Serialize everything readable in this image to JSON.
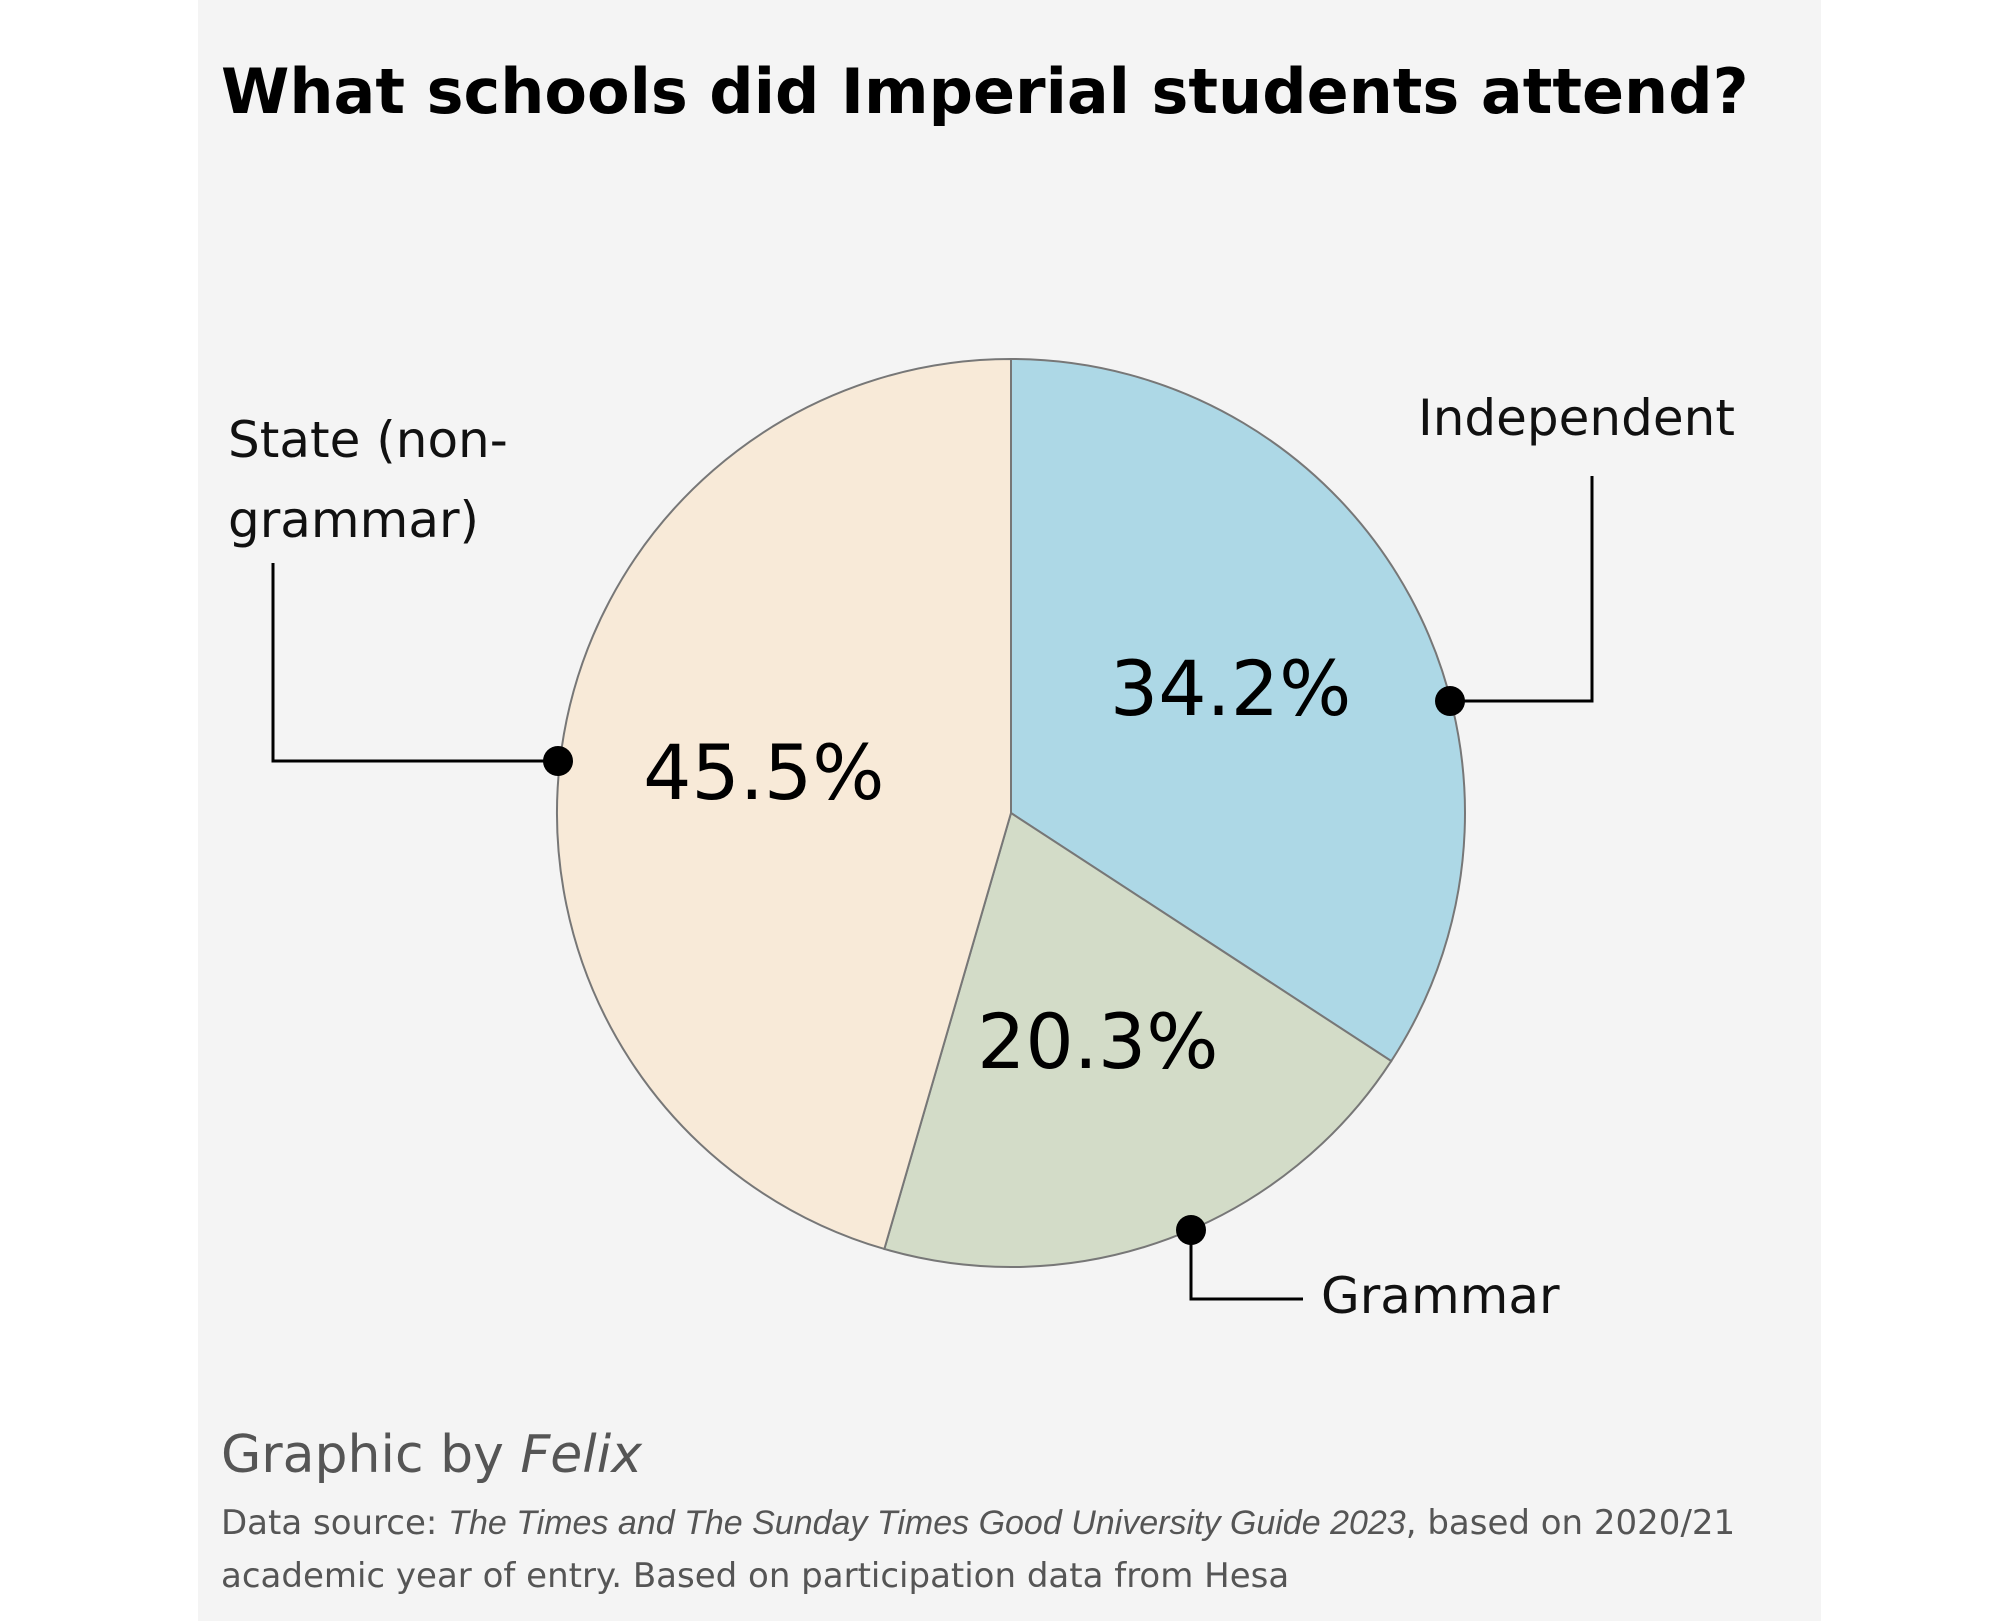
{
  "chart_data": {
    "type": "pie",
    "title": "What schools did Imperial students attend?",
    "categories": [
      "Independent",
      "Grammar",
      "State (non-grammar)"
    ],
    "values": [
      34.2,
      20.3,
      45.5
    ],
    "value_labels": [
      "34.2%",
      "20.3%",
      "45.5%"
    ],
    "colors": [
      "#add8e6",
      "#d3dcc8",
      "#f8ead8"
    ]
  },
  "footer": {
    "credit": "Graphic by",
    "credit_name": "Felix",
    "source_prefix": "Data source:",
    "source_title": "The Times and The Sunday Times Good University Guide 2023",
    "source_suffix": ", based on 2020/21 academic year of entry. Based on participation data from Hesa"
  }
}
